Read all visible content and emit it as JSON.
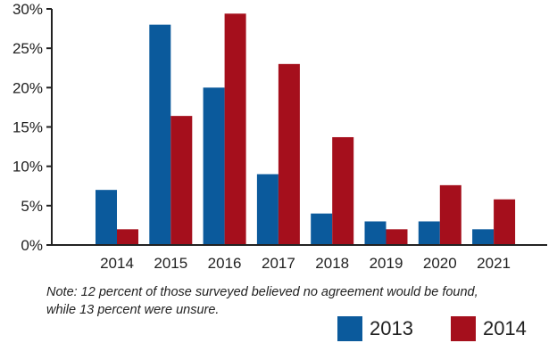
{
  "chart_data": {
    "type": "bar",
    "categories": [
      "2014",
      "2015",
      "2016",
      "2017",
      "2018",
      "2019",
      "2020",
      "2021"
    ],
    "series": [
      {
        "name": "2013",
        "values": [
          7,
          28,
          20,
          9,
          4,
          3,
          3,
          2
        ],
        "color": "#0b5a9c"
      },
      {
        "name": "2014",
        "values": [
          2,
          16.4,
          29.4,
          23,
          13.7,
          2,
          7.6,
          5.8
        ],
        "color": "#a50f1c"
      }
    ],
    "yticks": [
      "0%",
      "5%",
      "10%",
      "15%",
      "20%",
      "25%",
      "30%"
    ],
    "ylim": [
      0,
      30
    ],
    "grid": false,
    "legend_position": "bottom-right"
  },
  "note": {
    "line1": "Note: 12 percent of those surveyed believed no agreement would be found,",
    "line2": "while 13 percent were unsure."
  }
}
